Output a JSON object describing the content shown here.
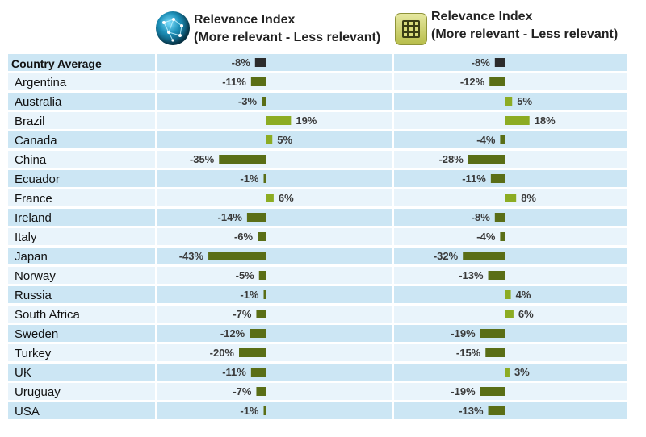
{
  "headers": [
    {
      "line1": "Relevance Index",
      "line2": "(More relevant - Less relevant)",
      "icon": "globe-network-icon"
    },
    {
      "line1": "Relevance Index",
      "line2": "(More relevant - Less relevant)",
      "icon": "grid-app-icon"
    }
  ],
  "colors": {
    "negative": "#5a6e16",
    "positive": "#8cac23",
    "average": "#2b2b2b",
    "stripe_light": "#e9f4fb",
    "stripe_dark": "#cce6f4"
  },
  "chart_data": {
    "type": "bar",
    "orientation": "horizontal",
    "categories": [
      "Country Average",
      "Argentina",
      "Australia",
      "Brazil",
      "Canada",
      "China",
      "Ecuador",
      "France",
      "Ireland",
      "Italy",
      "Japan",
      "Norway",
      "Russia",
      "South Africa",
      "Sweden",
      "Turkey",
      "UK",
      "Uruguay",
      "USA"
    ],
    "series": [
      {
        "name": "Relevance Index",
        "values": [
          -8,
          -11,
          -3,
          19,
          5,
          -35,
          -1,
          6,
          -14,
          -6,
          -43,
          -5,
          -1,
          -7,
          -12,
          -20,
          -11,
          -7,
          -1
        ]
      },
      {
        "name": "Relevance Index",
        "values": [
          -8,
          -12,
          5,
          18,
          -4,
          -28,
          -11,
          8,
          -8,
          -4,
          -32,
          -13,
          4,
          6,
          -19,
          -15,
          3,
          -19,
          -13
        ]
      }
    ],
    "value_suffix": "%"
  }
}
